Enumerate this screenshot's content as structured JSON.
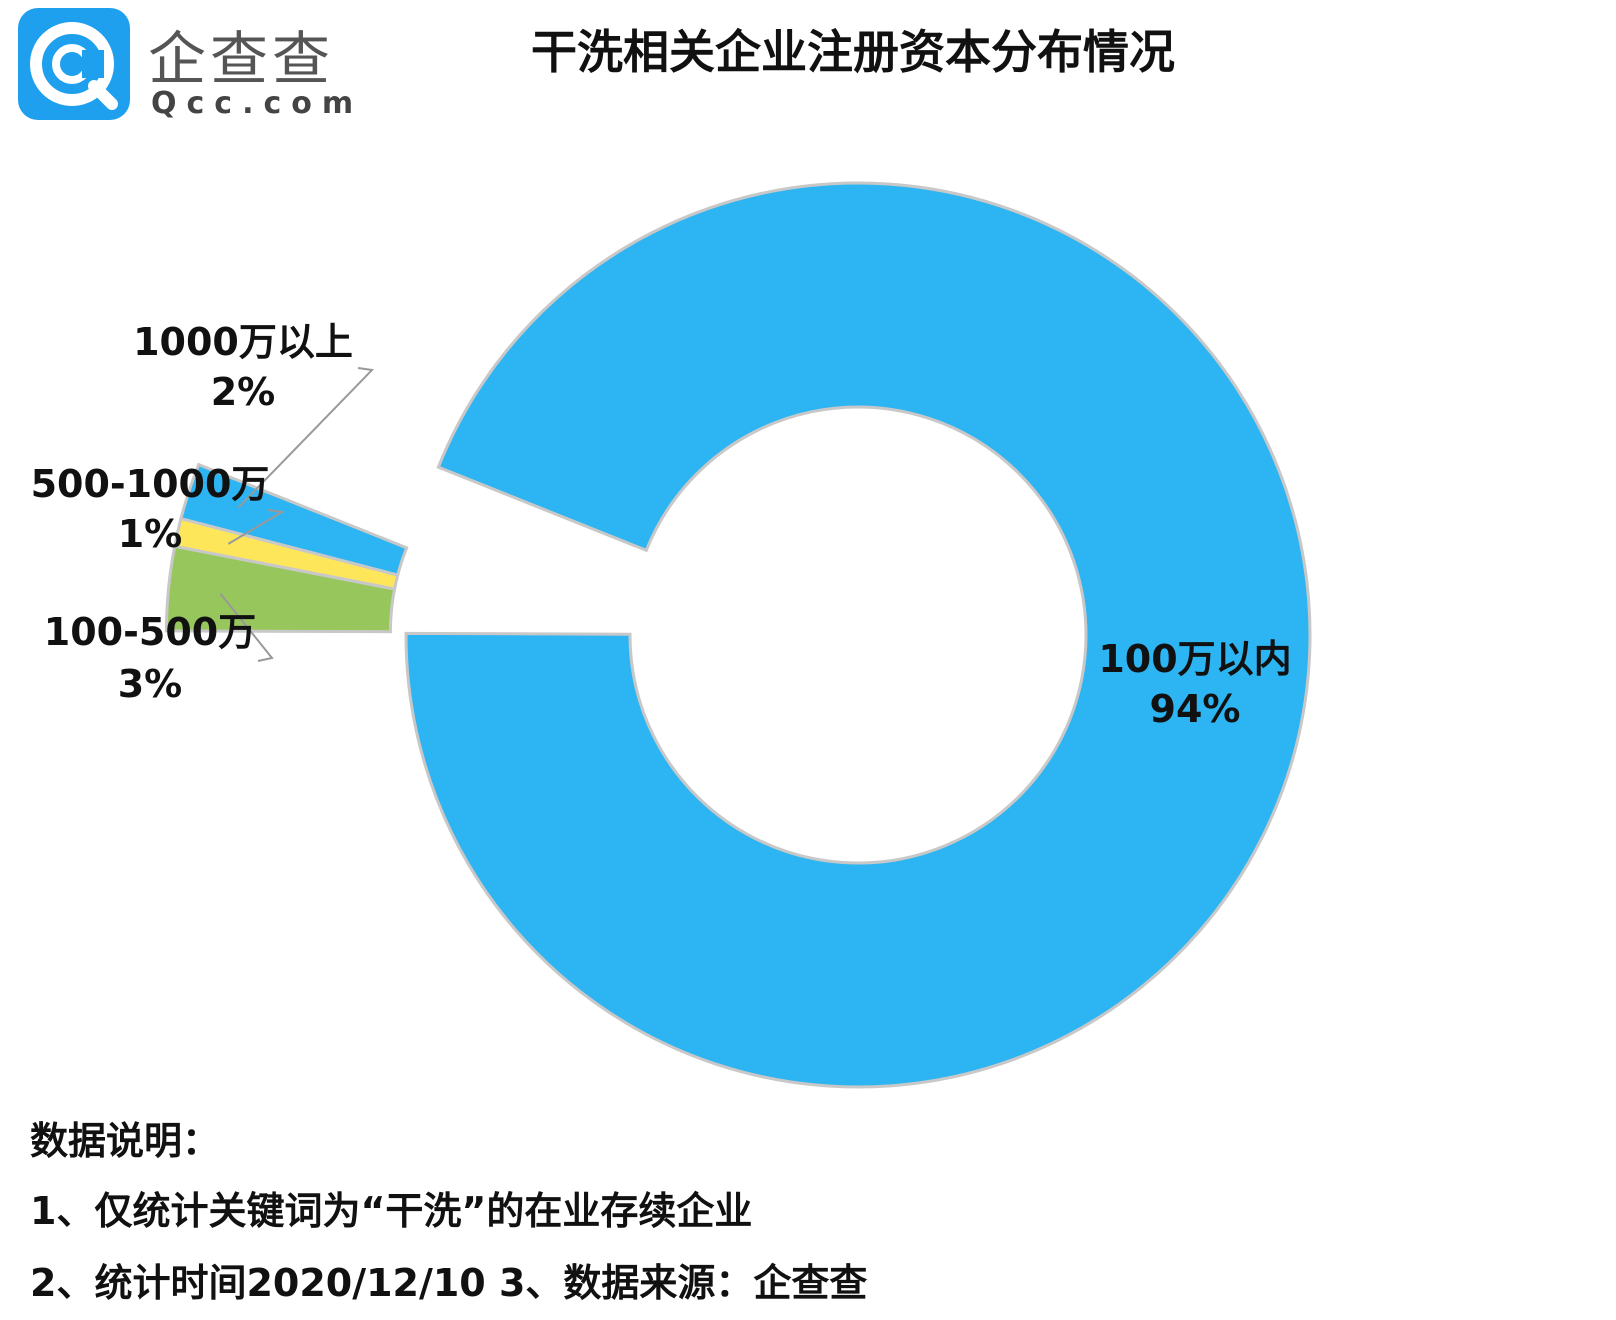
{
  "logo": {
    "name_cn": "企查查",
    "domain": "Qcc.com",
    "icon": "qcc-logo-icon"
  },
  "title": "干洗相关企业注册资本分布情况",
  "chart_data": {
    "type": "donut",
    "title": "干洗相关企业注册资本分布情况",
    "series": [
      {
        "name": "100万以内",
        "value": 94,
        "label": "94%",
        "color": "#2db4f2",
        "exploded": false
      },
      {
        "name": "1000万以上",
        "value": 2,
        "label": "2%",
        "color": "#2db4f2",
        "exploded": true
      },
      {
        "name": "500-1000万",
        "value": 1,
        "label": "1%",
        "color": "#fde65a",
        "exploded": true
      },
      {
        "name": "100-500万",
        "value": 3,
        "label": "3%",
        "color": "#97c75c",
        "exploded": true
      }
    ],
    "unit": "%",
    "legend": "none"
  },
  "notes": {
    "heading": "数据说明：",
    "line1": "1、仅统计关键词为“干洗”的在业存续企业",
    "line2": "2、统计时间2020/12/10    3、数据来源：企查查"
  }
}
